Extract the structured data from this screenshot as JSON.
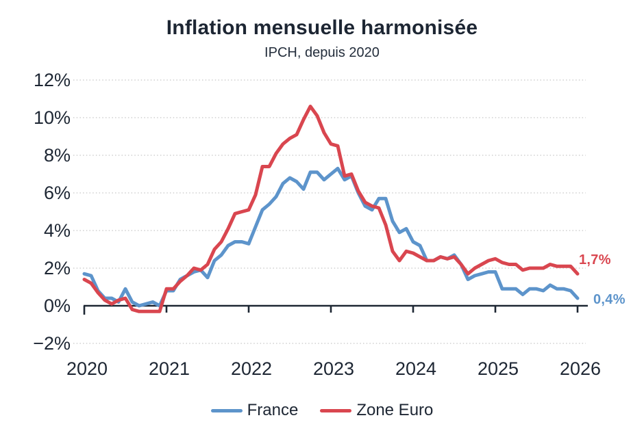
{
  "header": {
    "title": "Inflation mensuelle harmonisée",
    "subtitle": "IPCH, depuis 2020"
  },
  "colors": {
    "title_text": "#1d2633",
    "axis": "#1d2733",
    "gridline": "#cfcfcf",
    "france_blue": "#5d94cb",
    "zone_euro_red": "#d9464f"
  },
  "chart_data": {
    "type": "line",
    "title": "Inflation mensuelle harmonisée",
    "subtitle": "IPCH, depuis 2020",
    "unit": "%",
    "x_frequency": "monthly",
    "x_start": "2020-01",
    "x_end": "2026-01",
    "xlim": [
      2020,
      2026
    ],
    "ylim": [
      -2,
      12
    ],
    "grid": "horizontal dotted",
    "legend_position": "bottom",
    "ytick_values": [
      12,
      10,
      8,
      6,
      4,
      2,
      0,
      -2
    ],
    "ytick_labels": [
      "12%",
      "10%",
      "8%",
      "6%",
      "4%",
      "2%",
      "0%",
      "−2%"
    ],
    "xtick_labels": [
      "2020",
      "2021",
      "2022",
      "2023",
      "2024",
      "2025",
      "2026"
    ],
    "series": [
      {
        "name": "France",
        "color": "#5d94cb",
        "end_label": "0,4%",
        "values": [
          1.7,
          1.6,
          0.8,
          0.4,
          0.4,
          0.2,
          0.9,
          0.2,
          0.0,
          0.1,
          0.2,
          0.0,
          0.8,
          0.8,
          1.4,
          1.6,
          1.8,
          1.9,
          1.5,
          2.4,
          2.7,
          3.2,
          3.4,
          3.4,
          3.3,
          4.2,
          5.1,
          5.4,
          5.8,
          6.5,
          6.8,
          6.6,
          6.2,
          7.1,
          7.1,
          6.7,
          7.0,
          7.3,
          6.7,
          6.9,
          6.0,
          5.3,
          5.1,
          5.7,
          5.7,
          4.5,
          3.9,
          4.1,
          3.4,
          3.2,
          2.4,
          2.4,
          2.6,
          2.5,
          2.7,
          2.2,
          1.4,
          1.6,
          1.7,
          1.8,
          1.8,
          0.9,
          0.9,
          0.9,
          0.6,
          0.9,
          0.9,
          0.8,
          1.1,
          0.9,
          0.9,
          0.8,
          0.4
        ]
      },
      {
        "name": "Zone Euro",
        "color": "#d9464f",
        "end_label": "1,7%",
        "values": [
          1.4,
          1.2,
          0.7,
          0.3,
          0.1,
          0.3,
          0.4,
          -0.2,
          -0.3,
          -0.3,
          -0.3,
          -0.3,
          0.9,
          0.9,
          1.3,
          1.6,
          2.0,
          1.9,
          2.2,
          3.0,
          3.4,
          4.1,
          4.9,
          5.0,
          5.1,
          5.9,
          7.4,
          7.4,
          8.1,
          8.6,
          8.9,
          9.1,
          9.9,
          10.6,
          10.1,
          9.2,
          8.6,
          8.5,
          6.9,
          7.0,
          6.1,
          5.5,
          5.3,
          5.2,
          4.3,
          2.9,
          2.4,
          2.9,
          2.8,
          2.6,
          2.4,
          2.4,
          2.6,
          2.5,
          2.6,
          2.2,
          1.7,
          2.0,
          2.2,
          2.4,
          2.5,
          2.3,
          2.2,
          2.2,
          1.9,
          2.0,
          2.0,
          2.0,
          2.2,
          2.1,
          2.1,
          2.1,
          1.7
        ]
      }
    ]
  }
}
